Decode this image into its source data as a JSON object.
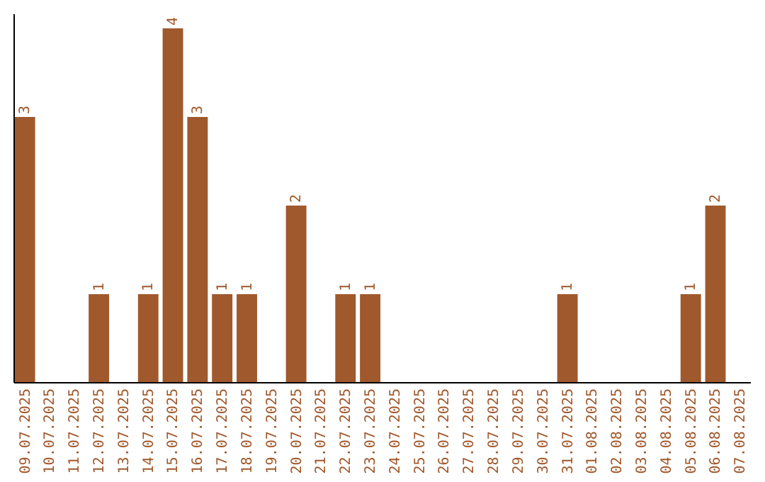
{
  "chart_data": {
    "type": "bar",
    "categories": [
      "09.07.2025",
      "10.07.2025",
      "11.07.2025",
      "12.07.2025",
      "13.07.2025",
      "14.07.2025",
      "15.07.2025",
      "16.07.2025",
      "17.07.2025",
      "18.07.2025",
      "19.07.2025",
      "20.07.2025",
      "21.07.2025",
      "22.07.2025",
      "23.07.2025",
      "24.07.2025",
      "25.07.2025",
      "26.07.2025",
      "27.07.2025",
      "28.07.2025",
      "29.07.2025",
      "30.07.2025",
      "31.07.2025",
      "01.08.2025",
      "02.08.2025",
      "03.08.2025",
      "04.08.2025",
      "05.08.2025",
      "06.08.2025",
      "07.08.2025"
    ],
    "values": [
      3,
      0,
      0,
      1,
      0,
      1,
      4,
      3,
      1,
      1,
      0,
      2,
      0,
      1,
      1,
      0,
      0,
      0,
      0,
      0,
      0,
      0,
      1,
      0,
      0,
      0,
      0,
      1,
      2,
      0
    ],
    "value_labels": [
      "3",
      null,
      null,
      "1",
      null,
      "1",
      "4",
      "3",
      "1",
      "1",
      null,
      "2",
      null,
      "1",
      "1",
      null,
      null,
      null,
      null,
      null,
      null,
      null,
      "1",
      null,
      null,
      null,
      null,
      "1",
      "2",
      null
    ],
    "color": "#a0592c",
    "tick_labels": "x"
  }
}
